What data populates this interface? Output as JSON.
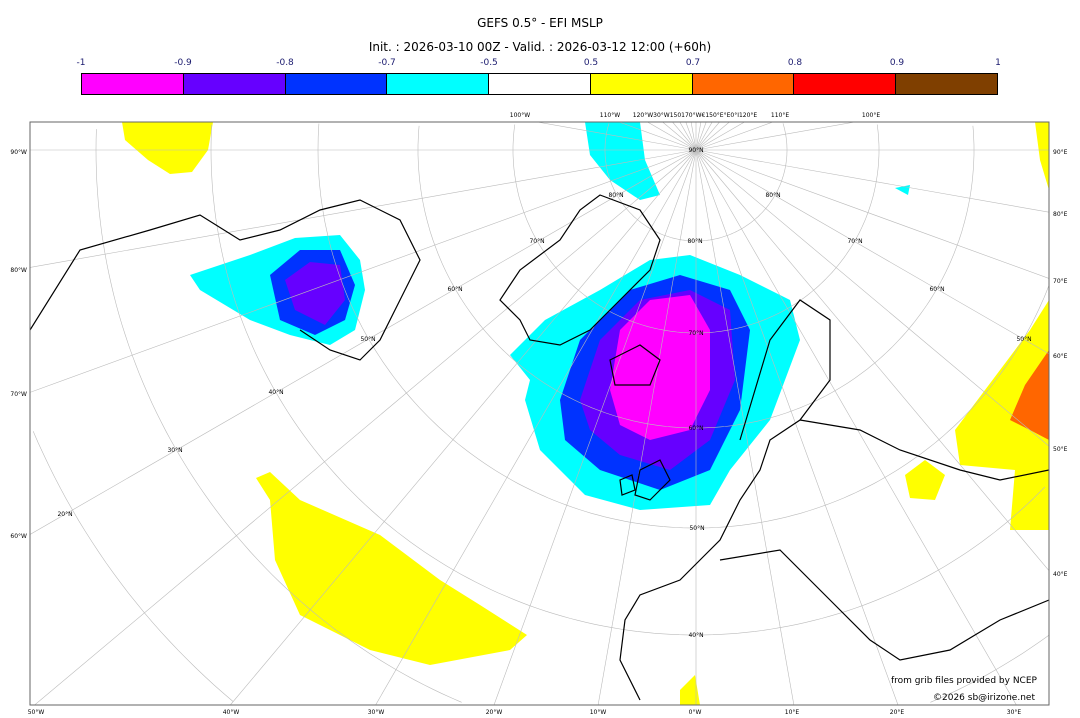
{
  "header": {
    "title": "GEFS 0.5° - EFI MSLP",
    "subtitle": "Init. : 2026-03-10 00Z - Valid. : 2026-03-12 12:00 (+60h)"
  },
  "colorbar": {
    "labels": [
      "-1",
      "-0.9",
      "-0.8",
      "-0.7",
      "-0.5",
      "0.5",
      "0.7",
      "0.8",
      "0.9",
      "1"
    ],
    "colors": [
      "#ff00ff",
      "#6600ff",
      "#0033ff",
      "#00ffff",
      "#ffffff",
      "#ffff00",
      "#ff6600",
      "#ff0000",
      "#ff0000",
      "#7f3f00"
    ],
    "segments": [
      "#ff00ff",
      "#6600ff",
      "#0033ff",
      "#00ffff",
      "#ffffff",
      "#ffff00",
      "#ff6600",
      "#ff0000",
      "#7f3f00"
    ]
  },
  "map": {
    "left_labels": [
      "90°W",
      "80°W",
      "70°W",
      "60°W"
    ],
    "right_labels": [
      "90°E",
      "80°E",
      "70°E",
      "60°E",
      "50°E",
      "40°E"
    ],
    "bottom_labels": [
      "50°W",
      "40°W",
      "30°W",
      "20°W",
      "10°W",
      "0°W",
      "10°E",
      "20°E",
      "30°E"
    ],
    "top_labels": [
      "100°W",
      "110°W",
      "120°W30°W150170°W€150°E°E0°I120°E",
      "110°E",
      "100°E"
    ],
    "lat_labels": [
      "90°N",
      "80°N",
      "70°N",
      "60°N",
      "50°N",
      "40°N",
      "80°N",
      "70°N",
      "60°N",
      "50°N",
      "40°N",
      "30°N",
      "20°N",
      "80°N",
      "70°N",
      "60°N",
      "50°N"
    ]
  },
  "credits": {
    "source": "from grib files provided by NCEP",
    "copyright": "©2026 sb@irizone.net"
  }
}
